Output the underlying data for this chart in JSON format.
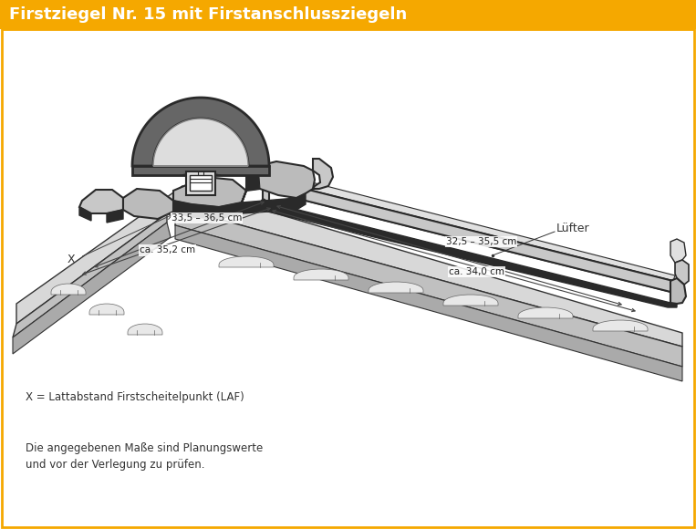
{
  "title": "Firstziegel Nr. 15 mit Firstanschlussziegeln",
  "title_bg_color": "#F5A800",
  "title_text_color": "#FFFFFF",
  "bg_color": "#FFFFFF",
  "border_color": "#F5A800",
  "label_luefter": "Lüfter",
  "label_x": "X",
  "dim1_text": "33,5 – 36,5 cm",
  "dim2_text": "ca. 35,2 cm",
  "dim3_text": "32,5 – 35,5 cm",
  "dim4_text": "ca. 34,0 cm",
  "footnote1": "X = Lattabstand Firstscheitelpunkt (LAF)",
  "footnote2": "Die angegebenen Maße sind Planungswerte",
  "footnote3": "und vor der Verlegung zu prüfen.",
  "line_color": "#333333",
  "dark_gray": "#2A2A2A",
  "mid_gray": "#888888",
  "light_gray": "#C8C8C8",
  "lighter_gray": "#E0E0E0",
  "slope_gray": "#D8D8D8",
  "dim_line_color": "#444444"
}
